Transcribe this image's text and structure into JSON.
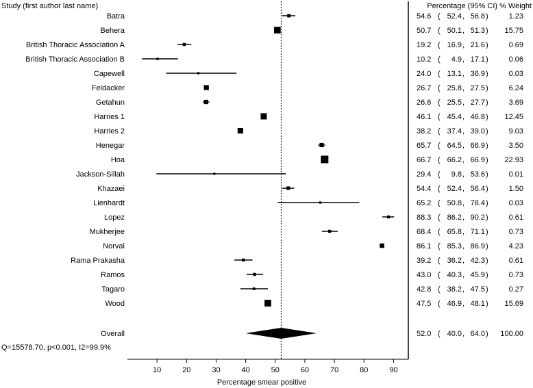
{
  "chart_data": {
    "type": "forest",
    "header_left": "Study (first author last name)",
    "header_right": "Percentage (95% CI) % Weight",
    "xlabel": "Percentage smear positive",
    "xlim": [
      0,
      95
    ],
    "xticks": [
      10,
      20,
      30,
      40,
      50,
      60,
      70,
      80,
      90
    ],
    "reference_line": 52.0,
    "studies": [
      {
        "name": "Batra",
        "est": 54.6,
        "lo": 52.4,
        "hi": 56.8,
        "weight": 1.23,
        "est_text": "54.6",
        "lo_text": "52.4",
        "hi_text": "56.8",
        "weight_text": "1.23"
      },
      {
        "name": "Behera",
        "est": 50.7,
        "lo": 50.1,
        "hi": 51.3,
        "weight": 15.75,
        "est_text": "50.7",
        "lo_text": "50.1",
        "hi_text": "51.3",
        "weight_text": "15.75"
      },
      {
        "name": "British Thoracic Association A",
        "est": 19.2,
        "lo": 16.9,
        "hi": 21.6,
        "weight": 0.69,
        "est_text": "19.2",
        "lo_text": "16.9",
        "hi_text": "21.6",
        "weight_text": "0.69"
      },
      {
        "name": "British Thoracic Association B",
        "est": 10.2,
        "lo": 4.9,
        "hi": 17.1,
        "weight": 0.06,
        "est_text": "10.2",
        "lo_text": "4.9",
        "hi_text": "17.1",
        "weight_text": "0.06"
      },
      {
        "name": "Capewell",
        "est": 24.0,
        "lo": 13.1,
        "hi": 36.9,
        "weight": 0.03,
        "est_text": "24.0",
        "lo_text": "13.1",
        "hi_text": "36.9",
        "weight_text": "0.03"
      },
      {
        "name": "Feldacker",
        "est": 26.7,
        "lo": 25.8,
        "hi": 27.5,
        "weight": 6.24,
        "est_text": "26.7",
        "lo_text": "25.8",
        "hi_text": "27.5",
        "weight_text": "6.24"
      },
      {
        "name": "Getahun",
        "est": 26.6,
        "lo": 25.5,
        "hi": 27.7,
        "weight": 3.69,
        "est_text": "26.6",
        "lo_text": "25.5",
        "hi_text": "27.7",
        "weight_text": "3.69"
      },
      {
        "name": "Harries 1",
        "est": 46.1,
        "lo": 45.4,
        "hi": 46.8,
        "weight": 12.45,
        "est_text": "46.1",
        "lo_text": "45.4",
        "hi_text": "46.8",
        "weight_text": "12.45"
      },
      {
        "name": "Harries 2",
        "est": 38.2,
        "lo": 37.4,
        "hi": 39.0,
        "weight": 9.03,
        "est_text": "38.2",
        "lo_text": "37.4",
        "hi_text": "39.0",
        "weight_text": "9.03"
      },
      {
        "name": "Henegar",
        "est": 65.7,
        "lo": 64.5,
        "hi": 66.9,
        "weight": 3.5,
        "est_text": "65.7",
        "lo_text": "64.5",
        "hi_text": "66.9",
        "weight_text": "3.50"
      },
      {
        "name": "Hoa",
        "est": 66.7,
        "lo": 66.2,
        "hi": 66.9,
        "weight": 22.93,
        "est_text": "66.7",
        "lo_text": "66.2",
        "hi_text": "66.9",
        "weight_text": "22.93"
      },
      {
        "name": "Jackson-Sillah",
        "est": 29.4,
        "lo": 9.8,
        "hi": 53.6,
        "weight": 0.01,
        "est_text": "29.4",
        "lo_text": "9.8",
        "hi_text": "53.6",
        "weight_text": "0.01"
      },
      {
        "name": "Khazaei",
        "est": 54.4,
        "lo": 52.4,
        "hi": 56.4,
        "weight": 1.5,
        "est_text": "54.4",
        "lo_text": "52.4",
        "hi_text": "56.4",
        "weight_text": "1.50"
      },
      {
        "name": "Lienhardt",
        "est": 65.2,
        "lo": 50.8,
        "hi": 78.4,
        "weight": 0.03,
        "est_text": "65.2",
        "lo_text": "50.8",
        "hi_text": "78.4",
        "weight_text": "0.03"
      },
      {
        "name": "Lopez",
        "est": 88.3,
        "lo": 86.2,
        "hi": 90.2,
        "weight": 0.61,
        "est_text": "88.3",
        "lo_text": "86.2",
        "hi_text": "90.2",
        "weight_text": "0.61"
      },
      {
        "name": "Mukherjee",
        "est": 68.4,
        "lo": 65.8,
        "hi": 71.1,
        "weight": 0.73,
        "est_text": "68.4",
        "lo_text": "65.8",
        "hi_text": "71.1",
        "weight_text": "0.73"
      },
      {
        "name": "Norval",
        "est": 86.1,
        "lo": 85.3,
        "hi": 86.9,
        "weight": 4.23,
        "est_text": "86.1",
        "lo_text": "85.3",
        "hi_text": "86.9",
        "weight_text": "4.23"
      },
      {
        "name": "Rama Prakasha",
        "est": 39.2,
        "lo": 36.2,
        "hi": 42.3,
        "weight": 0.61,
        "est_text": "39.2",
        "lo_text": "36.2",
        "hi_text": "42.3",
        "weight_text": "0.61"
      },
      {
        "name": "Ramos",
        "est": 43.0,
        "lo": 40.3,
        "hi": 45.9,
        "weight": 0.73,
        "est_text": "43.0",
        "lo_text": "40.3",
        "hi_text": "45.9",
        "weight_text": "0.73"
      },
      {
        "name": "Tagaro",
        "est": 42.8,
        "lo": 38.2,
        "hi": 47.5,
        "weight": 0.27,
        "est_text": "42.8",
        "lo_text": "38.2",
        "hi_text": "47.5",
        "weight_text": "0.27"
      },
      {
        "name": "Wood",
        "est": 47.5,
        "lo": 46.9,
        "hi": 48.1,
        "weight": 15.69,
        "est_text": "47.5",
        "lo_text": "46.9",
        "hi_text": "48.1",
        "weight_text": "15.69"
      }
    ],
    "overall": {
      "name": "Overall",
      "est": 52.0,
      "lo": 40.0,
      "hi": 64.0,
      "weight": 100.0,
      "est_text": "52.0",
      "lo_text": "40.0",
      "hi_text": "64.0",
      "weight_text": "100.00"
    },
    "heterogeneity": "Q=15578.70, p<0.001, I2=99.9%"
  }
}
